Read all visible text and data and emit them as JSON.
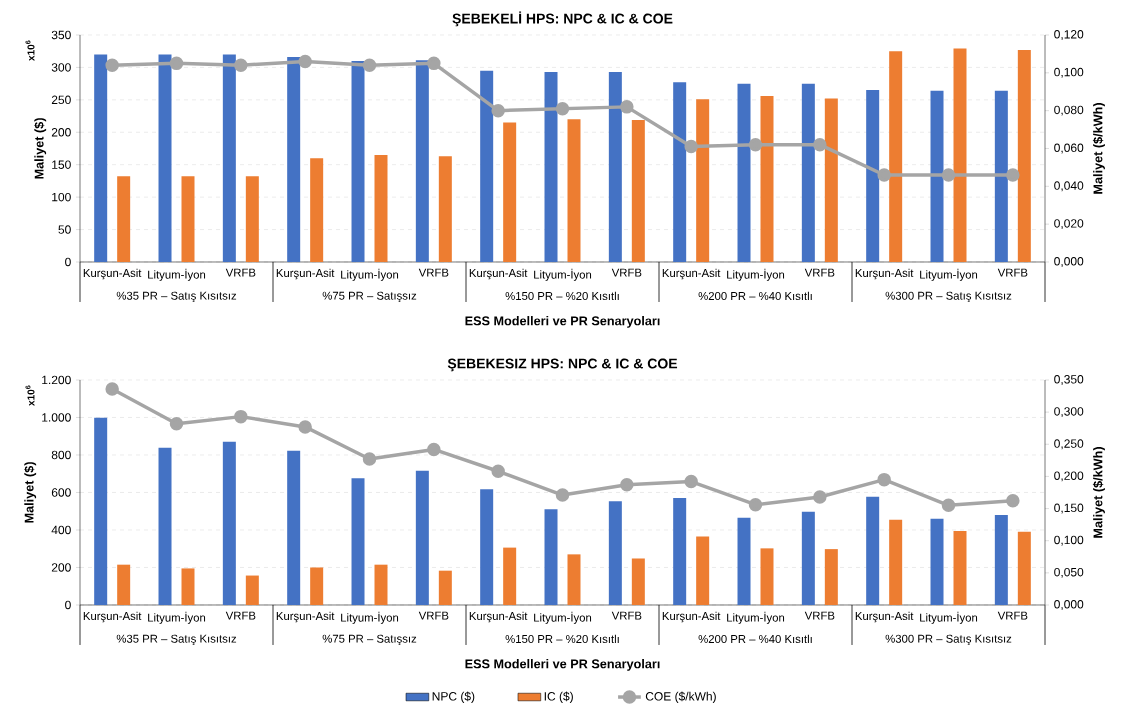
{
  "chart_data": [
    {
      "type": "bar",
      "title": "ŞEBEKELİ HPS: NPC & IC & COE",
      "xlabel": "ESS Modelleri ve PR Senaryoları",
      "ylabel": "Maliyet ($)",
      "y2label": "Maliyet ($/kWh)",
      "annotations": [
        "x10$^{6}$",
        "%35 PR – Satış Kısıtsız",
        "%75 PR – Satışsız",
        "%150 PR – %20 Kısıtlı",
        "%200 PR – %40 Kısıtlı",
        "%300 PR – Satış Kısıtsız"
      ],
      "categories": [
        "Kurşun-Asit",
        "Lityum-İyon",
        "VRFB",
        "Kurşun-Asit",
        "Lityum-İyon",
        "VRFB",
        "Kurşun-Asit",
        "Lityum-İyon",
        "VRFB",
        "Kurşun-Asit",
        "Lityum-İyon",
        "VRFB",
        "Kurşun-Asit",
        "Lityum-İyon",
        "VRFB"
      ],
      "ylim": [
        0,
        350
      ],
      "yticks": [
        0,
        50,
        100,
        150,
        200,
        250,
        300,
        350
      ],
      "y2lim": [
        0,
        0.12
      ],
      "y2ticks": [
        {
          "value": 0,
          "label": "0,000"
        },
        {
          "value": 0.02,
          "label": "0,020"
        },
        {
          "value": 0.04,
          "label": "0,040"
        },
        {
          "value": 0.06,
          "label": "0,060"
        },
        {
          "value": 0.08,
          "label": "0,080"
        },
        {
          "value": 0.1,
          "label": "0,100"
        },
        {
          "value": 0.12,
          "label": "0,120"
        }
      ],
      "grid": "y",
      "legend": false,
      "marker": "circle",
      "line_style": "solid",
      "series": [
        {
          "color": "#4472c4",
          "values": [
            320,
            320,
            320,
            316,
            310,
            311,
            295,
            293,
            293,
            277,
            275,
            275,
            265,
            264,
            264
          ]
        },
        {
          "color": "#ed7d31",
          "values": [
            132,
            132,
            132,
            160,
            165,
            163,
            215,
            220,
            219,
            251,
            256,
            252,
            325,
            329,
            327
          ]
        },
        {
          "type": "line",
          "axis": "y2",
          "color": "#a5a5a5",
          "values": [
            0.104,
            0.105,
            0.104,
            0.106,
            0.104,
            0.105,
            0.08,
            0.081,
            0.082,
            0.061,
            0.062,
            0.062,
            0.046,
            0.046,
            0.046
          ]
        }
      ]
    },
    {
      "type": "bar",
      "title": "ŞEBEKESIZ HPS: NPC & IC & COE",
      "xlabel": "ESS Modelleri ve PR Senaryoları",
      "ylabel": "Maliyet ($)",
      "y2label": "Maliyet ($/kWh)",
      "annotations": [
        "x10$^{6}$",
        "%35 PR – Satış Kısıtsız",
        "%75 PR – Satışsız",
        "%150 PR – %20 Kısıtlı",
        "%200 PR – %40 Kısıtlı",
        "%300 PR – Satış Kısıtsız"
      ],
      "categories": [
        "Kurşun-Asit",
        "Lityum-İyon",
        "VRFB",
        "Kurşun-Asit",
        "Lityum-İyon",
        "VRFB",
        "Kurşun-Asit",
        "Lityum-İyon",
        "VRFB",
        "Kurşun-Asit",
        "Lityum-İyon",
        "VRFB",
        "Kurşun-Asit",
        "Lityum-İyon",
        "VRFB"
      ],
      "ylim": [
        0,
        1200
      ],
      "yticks": [
        0,
        200,
        400,
        600,
        800,
        {
          "value": 1000,
          "label": "1.000"
        },
        {
          "value": 1200,
          "label": "1.200"
        }
      ],
      "y2lim": [
        0,
        0.35
      ],
      "y2ticks": [
        {
          "value": 0,
          "label": "0,000"
        },
        {
          "value": 0.05,
          "label": "0,050"
        },
        {
          "value": 0.1,
          "label": "0,100"
        },
        {
          "value": 0.15,
          "label": "0,150"
        },
        {
          "value": 0.2,
          "label": "0,200"
        },
        {
          "value": 0.25,
          "label": "0,250"
        },
        {
          "value": 0.3,
          "label": "0,300"
        },
        {
          "value": 0.35,
          "label": "0,350"
        }
      ],
      "grid": "y",
      "legend": "bottom",
      "marker": "circle",
      "line_style": "solid",
      "series": [
        {
          "name": "NPC ($)",
          "color": "#4472c4",
          "values": [
            998,
            838,
            870,
            823,
            676,
            716,
            617,
            510,
            553,
            570,
            465,
            497,
            577,
            460,
            480
          ]
        },
        {
          "name": "IC ($)",
          "color": "#ed7d31",
          "values": [
            215,
            195,
            157,
            200,
            215,
            183,
            306,
            270,
            248,
            365,
            302,
            298,
            455,
            395,
            390
          ]
        },
        {
          "name": "COE ($/kWh)",
          "type": "line",
          "axis": "y2",
          "color": "#a5a5a5",
          "values": [
            0.336,
            0.282,
            0.293,
            0.277,
            0.227,
            0.242,
            0.208,
            0.171,
            0.187,
            0.192,
            0.156,
            0.168,
            0.195,
            0.155,
            0.162
          ]
        }
      ]
    }
  ]
}
